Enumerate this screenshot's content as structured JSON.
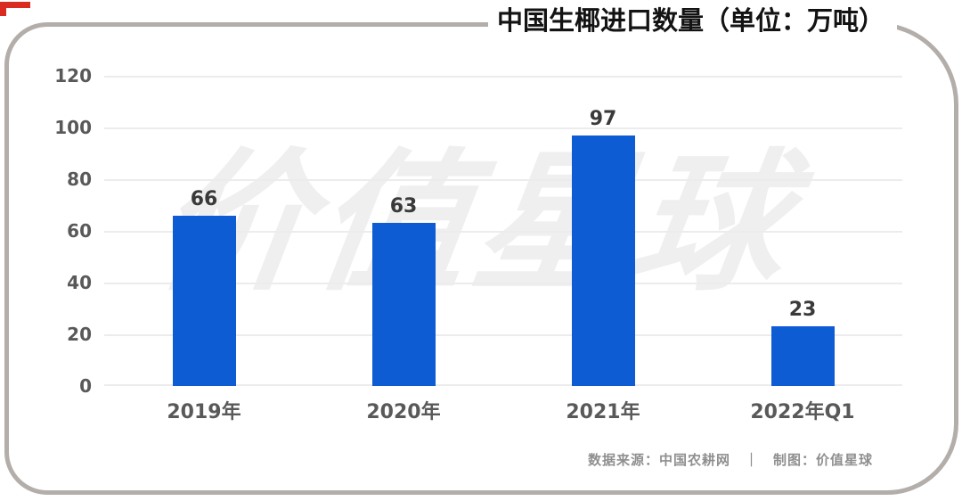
{
  "title": "中国生椰进口数量（单位：万吨）",
  "watermark": "价值星球",
  "footer": {
    "source": "数据来源：中国农耕网",
    "separator": "｜",
    "credit": "制图：价值星球"
  },
  "colors": {
    "bar": "#0e5cd3",
    "card_border": "#b3aeaa",
    "grid": "#ececec",
    "axis_label": "#595959",
    "value_label": "#3a3a3a",
    "title": "#131313",
    "footer": "#8f8f8f",
    "watermark": "#f0eff0",
    "corner_mark": "#d92b1f",
    "background": "#ffffff"
  },
  "chart_data": {
    "type": "bar",
    "categories": [
      "2019年",
      "2020年",
      "2021年",
      "2022年Q1"
    ],
    "values": [
      66,
      63,
      97,
      23
    ],
    "title": "中国生椰进口数量（单位：万吨）",
    "xlabel": "",
    "ylabel": "",
    "ylim": [
      0,
      120
    ],
    "yticks": [
      0,
      20,
      40,
      60,
      80,
      100,
      120
    ],
    "grid": true,
    "legend": false,
    "bar_color": "#0e5cd3",
    "value_labels_shown": true
  }
}
